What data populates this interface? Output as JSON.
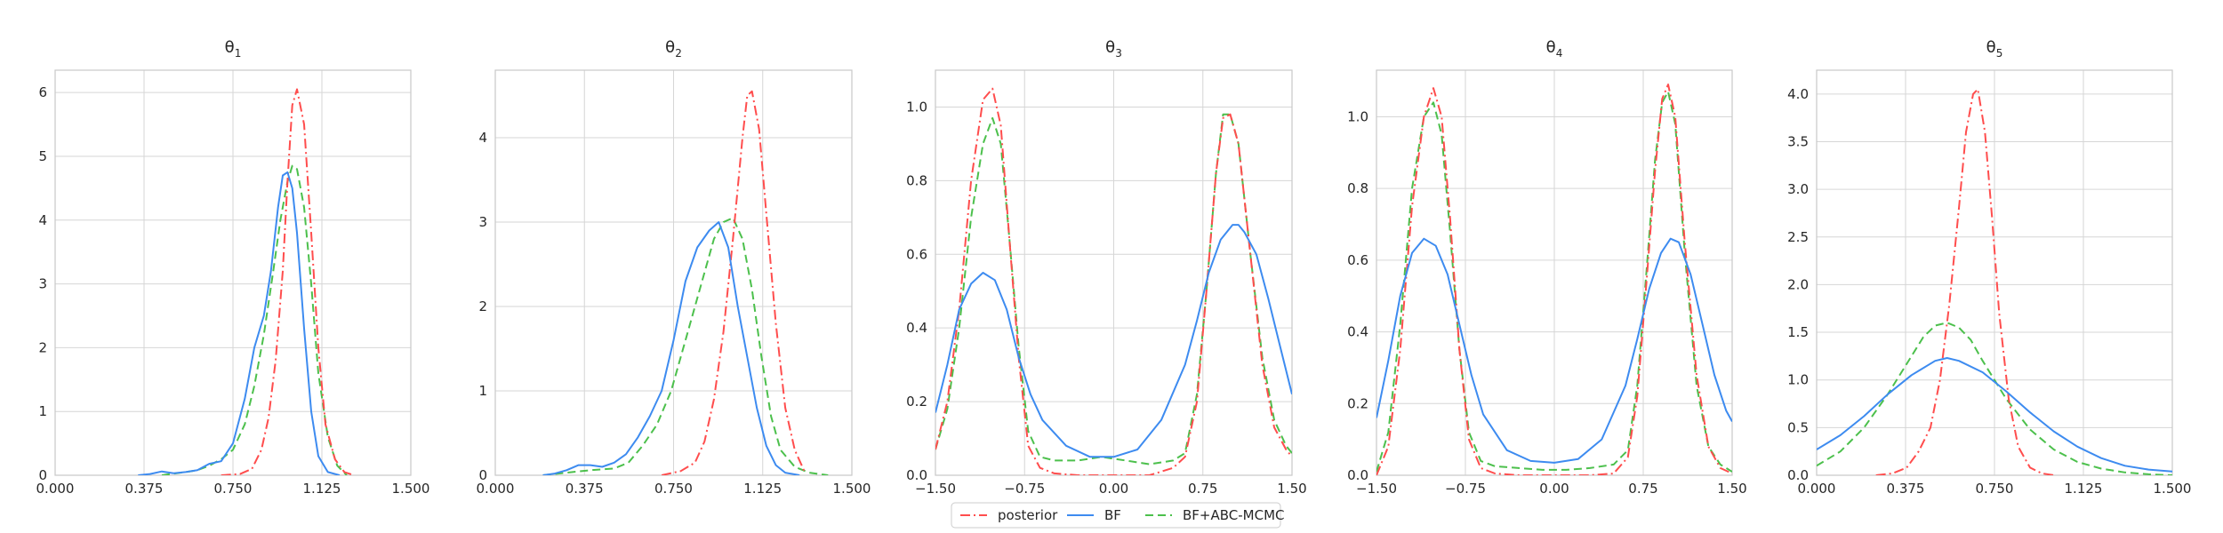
{
  "figure": {
    "legend": [
      {
        "key": "posterior",
        "label": "posterior",
        "color": "#ff4d4d",
        "dash": "dashdot"
      },
      {
        "key": "bf",
        "label": "BF",
        "color": "#3d8bf0",
        "dash": "solid"
      },
      {
        "key": "bfabc",
        "label": "BF+ABC-MCMC",
        "color": "#4cc04c",
        "dash": "dashed"
      }
    ],
    "legend_placement": "bottom-center"
  },
  "chart_data": [
    {
      "type": "line",
      "title": "θ",
      "title_sub": "1",
      "grid": true,
      "xlim": [
        0,
        1.5
      ],
      "ylim": [
        0,
        6.35
      ],
      "xticks": [
        0,
        0.375,
        0.75,
        1.125,
        1.5
      ],
      "xtick_labels": [
        "0.000",
        "0.375",
        "0.750",
        "1.125",
        "1.500"
      ],
      "yticks": [
        0,
        1,
        2,
        3,
        4,
        5,
        6
      ],
      "ytick_labels": [
        "0",
        "1",
        "2",
        "3",
        "4",
        "5",
        "6"
      ],
      "series": [
        {
          "key": "posterior",
          "x": [
            0.7,
            0.78,
            0.83,
            0.87,
            0.9,
            0.93,
            0.96,
            0.98,
            1.0,
            1.02,
            1.05,
            1.08,
            1.11,
            1.14,
            1.18,
            1.22,
            1.26
          ],
          "y": [
            0,
            0.02,
            0.1,
            0.4,
            0.9,
            1.8,
            3.2,
            4.6,
            5.8,
            6.05,
            5.5,
            3.8,
            2.0,
            0.8,
            0.25,
            0.05,
            0
          ]
        },
        {
          "key": "bf",
          "x": [
            0.35,
            0.4,
            0.45,
            0.5,
            0.55,
            0.6,
            0.65,
            0.7,
            0.75,
            0.8,
            0.84,
            0.88,
            0.91,
            0.94,
            0.96,
            0.98,
            1.0,
            1.02,
            1.05,
            1.08,
            1.11,
            1.15,
            1.2
          ],
          "y": [
            0,
            0.02,
            0.06,
            0.03,
            0.05,
            0.08,
            0.18,
            0.22,
            0.5,
            1.2,
            2.0,
            2.5,
            3.2,
            4.2,
            4.7,
            4.75,
            4.5,
            3.8,
            2.3,
            1.0,
            0.3,
            0.05,
            0
          ]
        },
        {
          "key": "bfabc",
          "x": [
            0.45,
            0.55,
            0.6,
            0.65,
            0.7,
            0.75,
            0.8,
            0.84,
            0.88,
            0.92,
            0.95,
            0.98,
            1.0,
            1.02,
            1.05,
            1.08,
            1.11,
            1.15,
            1.19,
            1.23
          ],
          "y": [
            0,
            0.05,
            0.08,
            0.15,
            0.25,
            0.4,
            0.8,
            1.4,
            2.2,
            3.2,
            4.0,
            4.6,
            4.85,
            4.8,
            4.2,
            3.0,
            1.6,
            0.6,
            0.15,
            0
          ]
        }
      ]
    },
    {
      "type": "line",
      "title": "θ",
      "title_sub": "2",
      "grid": true,
      "xlim": [
        0,
        1.5
      ],
      "ylim": [
        0,
        4.8
      ],
      "xticks": [
        0,
        0.375,
        0.75,
        1.125,
        1.5
      ],
      "xtick_labels": [
        "0.000",
        "0.375",
        "0.750",
        "1.125",
        "1.500"
      ],
      "yticks": [
        0,
        1,
        2,
        3,
        4
      ],
      "ytick_labels": [
        "0",
        "1",
        "2",
        "3",
        "4"
      ],
      "series": [
        {
          "key": "posterior",
          "x": [
            0.7,
            0.78,
            0.84,
            0.88,
            0.92,
            0.96,
            1.0,
            1.04,
            1.06,
            1.08,
            1.11,
            1.14,
            1.18,
            1.22,
            1.26,
            1.3
          ],
          "y": [
            0,
            0.05,
            0.15,
            0.4,
            0.9,
            1.7,
            2.8,
            4.0,
            4.5,
            4.55,
            4.1,
            3.1,
            1.8,
            0.8,
            0.3,
            0.05
          ]
        },
        {
          "key": "bf",
          "x": [
            0.2,
            0.25,
            0.3,
            0.35,
            0.4,
            0.45,
            0.5,
            0.55,
            0.6,
            0.65,
            0.7,
            0.75,
            0.8,
            0.85,
            0.9,
            0.94,
            0.98,
            1.02,
            1.06,
            1.1,
            1.14,
            1.18,
            1.22,
            1.28
          ],
          "y": [
            0,
            0.02,
            0.06,
            0.12,
            0.12,
            0.1,
            0.15,
            0.25,
            0.45,
            0.7,
            1.0,
            1.6,
            2.3,
            2.7,
            2.9,
            3.0,
            2.7,
            2.0,
            1.4,
            0.8,
            0.35,
            0.12,
            0.03,
            0
          ]
        },
        {
          "key": "bfabc",
          "x": [
            0.2,
            0.3,
            0.4,
            0.5,
            0.56,
            0.62,
            0.68,
            0.74,
            0.8,
            0.86,
            0.92,
            0.96,
            1.0,
            1.04,
            1.08,
            1.12,
            1.16,
            1.2,
            1.26,
            1.32,
            1.4
          ],
          "y": [
            0,
            0.03,
            0.06,
            0.08,
            0.15,
            0.35,
            0.6,
            1.0,
            1.6,
            2.2,
            2.8,
            3.0,
            3.05,
            2.8,
            2.2,
            1.4,
            0.7,
            0.3,
            0.1,
            0.03,
            0
          ]
        }
      ]
    },
    {
      "type": "line",
      "title": "θ",
      "title_sub": "3",
      "grid": true,
      "xlim": [
        -1.5,
        1.5
      ],
      "ylim": [
        0,
        1.1
      ],
      "xticks": [
        -1.5,
        -0.75,
        0,
        0.75,
        1.5
      ],
      "xtick_labels": [
        "−1.50",
        "−0.75",
        "0.00",
        "0.75",
        "1.50"
      ],
      "yticks": [
        0,
        0.2,
        0.4,
        0.6,
        0.8,
        1.0
      ],
      "ytick_labels": [
        "0.0",
        "0.2",
        "0.4",
        "0.6",
        "0.8",
        "1.0"
      ],
      "series": [
        {
          "key": "posterior",
          "x": [
            -1.5,
            -1.4,
            -1.3,
            -1.2,
            -1.1,
            -1.02,
            -0.95,
            -0.88,
            -0.8,
            -0.72,
            -0.62,
            -0.5,
            -0.3,
            0.0,
            0.3,
            0.5,
            0.6,
            0.7,
            0.78,
            0.86,
            0.92,
            0.98,
            1.05,
            1.15,
            1.25,
            1.35,
            1.45,
            1.5
          ],
          "y": [
            0.07,
            0.2,
            0.45,
            0.8,
            1.02,
            1.05,
            0.95,
            0.65,
            0.32,
            0.08,
            0.02,
            0.005,
            0,
            0,
            0,
            0.02,
            0.05,
            0.2,
            0.5,
            0.82,
            0.97,
            0.98,
            0.9,
            0.6,
            0.3,
            0.13,
            0.07,
            0.05
          ]
        },
        {
          "key": "bf",
          "x": [
            -1.5,
            -1.4,
            -1.3,
            -1.2,
            -1.1,
            -1.0,
            -0.9,
            -0.8,
            -0.7,
            -0.6,
            -0.4,
            -0.2,
            0.0,
            0.2,
            0.4,
            0.6,
            0.7,
            0.8,
            0.9,
            1.0,
            1.05,
            1.1,
            1.2,
            1.3,
            1.4,
            1.5
          ],
          "y": [
            0.17,
            0.3,
            0.45,
            0.52,
            0.55,
            0.53,
            0.45,
            0.32,
            0.22,
            0.15,
            0.08,
            0.05,
            0.05,
            0.07,
            0.15,
            0.3,
            0.42,
            0.55,
            0.64,
            0.68,
            0.68,
            0.66,
            0.6,
            0.48,
            0.35,
            0.22
          ]
        },
        {
          "key": "bfabc",
          "x": [
            -1.5,
            -1.4,
            -1.3,
            -1.2,
            -1.1,
            -1.02,
            -0.95,
            -0.88,
            -0.8,
            -0.72,
            -0.62,
            -0.5,
            -0.3,
            -0.1,
            0.1,
            0.3,
            0.5,
            0.6,
            0.7,
            0.78,
            0.86,
            0.92,
            0.98,
            1.05,
            1.15,
            1.25,
            1.35,
            1.45,
            1.5
          ],
          "y": [
            0.07,
            0.18,
            0.4,
            0.7,
            0.9,
            0.97,
            0.9,
            0.65,
            0.35,
            0.12,
            0.05,
            0.04,
            0.04,
            0.05,
            0.04,
            0.03,
            0.04,
            0.06,
            0.22,
            0.5,
            0.82,
            0.98,
            0.98,
            0.9,
            0.6,
            0.32,
            0.15,
            0.08,
            0.06
          ]
        }
      ]
    },
    {
      "type": "line",
      "title": "θ",
      "title_sub": "4",
      "grid": true,
      "xlim": [
        -1.5,
        1.5
      ],
      "ylim": [
        0,
        1.13
      ],
      "xticks": [
        -1.5,
        -0.75,
        0,
        0.75,
        1.5
      ],
      "xtick_labels": [
        "−1.50",
        "−0.75",
        "0.00",
        "0.75",
        "1.50"
      ],
      "yticks": [
        0,
        0.2,
        0.4,
        0.6,
        0.8,
        1.0
      ],
      "ytick_labels": [
        "0.0",
        "0.2",
        "0.4",
        "0.6",
        "0.8",
        "1.0"
      ],
      "series": [
        {
          "key": "posterior",
          "x": [
            -1.5,
            -1.4,
            -1.3,
            -1.2,
            -1.1,
            -1.02,
            -0.95,
            -0.88,
            -0.8,
            -0.72,
            -0.62,
            -0.5,
            -0.3,
            0.0,
            0.3,
            0.5,
            0.62,
            0.7,
            0.78,
            0.85,
            0.91,
            0.96,
            1.02,
            1.1,
            1.2,
            1.3,
            1.4,
            1.5
          ],
          "y": [
            0,
            0.08,
            0.35,
            0.75,
            1.0,
            1.08,
            1.0,
            0.72,
            0.35,
            0.1,
            0.02,
            0.005,
            0,
            0,
            0,
            0.005,
            0.05,
            0.22,
            0.55,
            0.85,
            1.05,
            1.09,
            1.0,
            0.65,
            0.28,
            0.08,
            0.02,
            0.005
          ]
        },
        {
          "key": "bf",
          "x": [
            -1.5,
            -1.4,
            -1.3,
            -1.2,
            -1.1,
            -1.0,
            -0.9,
            -0.8,
            -0.7,
            -0.6,
            -0.4,
            -0.2,
            0.0,
            0.2,
            0.4,
            0.6,
            0.7,
            0.8,
            0.9,
            0.98,
            1.05,
            1.15,
            1.25,
            1.35,
            1.45,
            1.5
          ],
          "y": [
            0.16,
            0.32,
            0.5,
            0.62,
            0.66,
            0.64,
            0.56,
            0.42,
            0.28,
            0.17,
            0.07,
            0.04,
            0.035,
            0.045,
            0.1,
            0.25,
            0.38,
            0.52,
            0.62,
            0.66,
            0.65,
            0.56,
            0.42,
            0.28,
            0.18,
            0.15
          ]
        },
        {
          "key": "bfabc",
          "x": [
            -1.5,
            -1.4,
            -1.3,
            -1.2,
            -1.1,
            -1.02,
            -0.95,
            -0.88,
            -0.8,
            -0.72,
            -0.62,
            -0.5,
            -0.3,
            -0.1,
            0.1,
            0.3,
            0.5,
            0.62,
            0.7,
            0.78,
            0.85,
            0.91,
            0.96,
            1.02,
            1.1,
            1.2,
            1.3,
            1.4,
            1.5
          ],
          "y": [
            0.01,
            0.12,
            0.42,
            0.8,
            1.0,
            1.04,
            0.95,
            0.68,
            0.35,
            0.12,
            0.04,
            0.025,
            0.02,
            0.015,
            0.015,
            0.02,
            0.03,
            0.07,
            0.25,
            0.58,
            0.88,
            1.04,
            1.07,
            0.98,
            0.62,
            0.25,
            0.08,
            0.03,
            0.01
          ]
        }
      ]
    },
    {
      "type": "line",
      "title": "θ",
      "title_sub": "5",
      "grid": true,
      "xlim": [
        0,
        1.5
      ],
      "ylim": [
        0,
        4.25
      ],
      "xticks": [
        0,
        0.375,
        0.75,
        1.125,
        1.5
      ],
      "xtick_labels": [
        "0.000",
        "0.375",
        "0.750",
        "1.125",
        "1.500"
      ],
      "yticks": [
        0,
        0.5,
        1.0,
        1.5,
        2.0,
        2.5,
        3.0,
        3.5,
        4.0
      ],
      "ytick_labels": [
        "0.0",
        "0.5",
        "1.0",
        "1.5",
        "2.0",
        "2.5",
        "3.0",
        "3.5",
        "4.0"
      ],
      "series": [
        {
          "key": "posterior",
          "x": [
            0.25,
            0.32,
            0.38,
            0.43,
            0.48,
            0.52,
            0.56,
            0.6,
            0.63,
            0.66,
            0.68,
            0.71,
            0.74,
            0.77,
            0.81,
            0.85,
            0.9,
            0.95,
            1.0
          ],
          "y": [
            0,
            0.02,
            0.08,
            0.25,
            0.5,
            1.0,
            1.8,
            2.8,
            3.6,
            4.0,
            4.05,
            3.6,
            2.7,
            1.7,
            0.8,
            0.3,
            0.08,
            0.02,
            0
          ]
        },
        {
          "key": "bf",
          "x": [
            0.0,
            0.1,
            0.2,
            0.3,
            0.4,
            0.5,
            0.55,
            0.6,
            0.7,
            0.8,
            0.9,
            1.0,
            1.1,
            1.2,
            1.3,
            1.4,
            1.5
          ],
          "y": [
            0.27,
            0.42,
            0.62,
            0.85,
            1.05,
            1.2,
            1.23,
            1.2,
            1.08,
            0.88,
            0.66,
            0.46,
            0.3,
            0.18,
            0.1,
            0.06,
            0.04
          ]
        },
        {
          "key": "bfabc",
          "x": [
            0.0,
            0.1,
            0.2,
            0.3,
            0.4,
            0.45,
            0.5,
            0.55,
            0.6,
            0.65,
            0.7,
            0.8,
            0.9,
            1.0,
            1.1,
            1.2,
            1.3,
            1.4,
            1.5
          ],
          "y": [
            0.1,
            0.25,
            0.5,
            0.85,
            1.25,
            1.45,
            1.57,
            1.6,
            1.55,
            1.42,
            1.2,
            0.8,
            0.48,
            0.27,
            0.14,
            0.07,
            0.03,
            0.01,
            0
          ]
        }
      ]
    }
  ]
}
